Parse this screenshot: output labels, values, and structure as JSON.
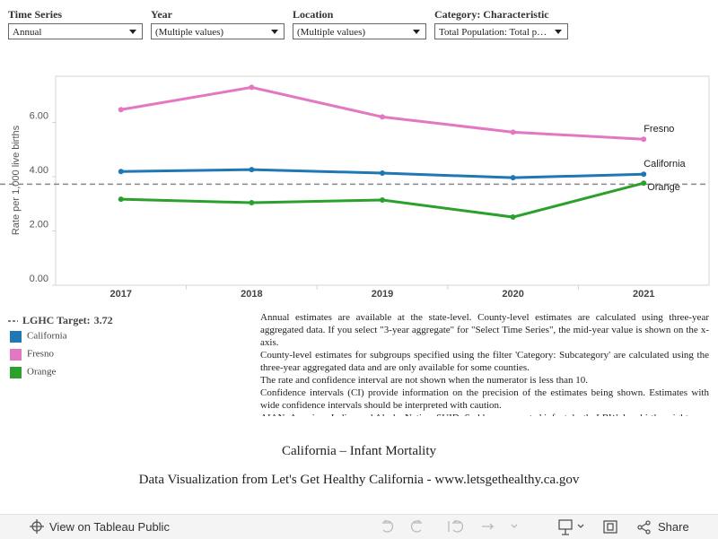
{
  "filters": [
    {
      "label": "Time Series",
      "value": "Annual"
    },
    {
      "label": "Year",
      "value": "(Multiple values)"
    },
    {
      "label": "Location",
      "value": "(Multiple values)"
    },
    {
      "label": "Category: Characteristic",
      "value": "Total Population: Total p…"
    }
  ],
  "chart_data": {
    "type": "line",
    "y_label": "Rate per 1,000 live births",
    "categories": [
      "2017",
      "2018",
      "2019",
      "2020",
      "2021"
    ],
    "series": [
      {
        "name": "California",
        "color": "#1f77b4",
        "values": [
          4.19,
          4.26,
          4.13,
          3.96,
          4.09
        ]
      },
      {
        "name": "Fresno",
        "color": "#e377c2",
        "values": [
          6.47,
          7.29,
          6.2,
          5.64,
          5.38
        ]
      },
      {
        "name": "Orange",
        "color": "#2ca02c",
        "values": [
          3.17,
          3.04,
          3.14,
          2.51,
          3.76
        ]
      }
    ],
    "reference_line": {
      "label": "LGHC Target:",
      "value": 3.72,
      "color": "#888888"
    },
    "ylim": [
      0,
      7.7
    ],
    "yticks": [
      {
        "value": 0,
        "label": "0.00"
      },
      {
        "value": 2,
        "label": "2.00"
      },
      {
        "value": 4,
        "label": "4.00"
      },
      {
        "value": 6,
        "label": "6.00"
      }
    ],
    "grid": false
  },
  "notes": [
    "Annual estimates are available at the state-level. County-level estimates are calculated using three-year aggregated data. If you select \"3-year aggregate\" for \"Select Time Series\", the mid-year value is shown on the x-axis.",
    "County-level estimates for subgroups specified using the filter 'Category: Subcategory' are calculated using the three-year aggregated data and are only available for some counties.",
    "The rate and confidence interval are not shown when the numerator is less than 10.",
    "Confidence intervals (CI) provide information on the precision of the estimates being shown. Estimates with wide confidence intervals should be interpreted with caution.",
    "AIAN: American Indian and Alaska Native; SUID: Sudden unexpected infant death; LBW: low birth weight"
  ],
  "footer": {
    "title": "California – Infant Mortality",
    "subtitle": "Data Visualization from Let's Get Healthy California - www.letsgethealthy.ca.gov"
  },
  "toolbar": {
    "view": "View on Tableau Public",
    "share": "Share"
  }
}
